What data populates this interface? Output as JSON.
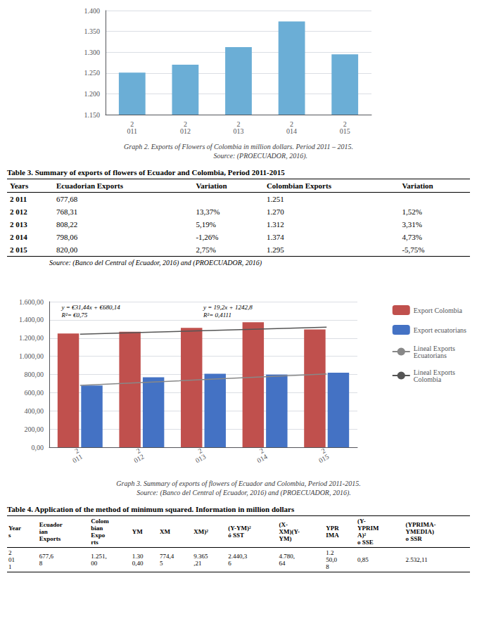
{
  "chart_data": [
    {
      "type": "bar",
      "title": "Graph 2. Exports of Flowers of Colombia in million dollars. Period 2011 – 2015.\n                         Source: (PROECUADOR, 2016).",
      "categories": [
        "2\n011",
        "2\n012",
        "2\n013",
        "2\n014",
        "2\n015"
      ],
      "values": [
        1.251,
        1.27,
        1.312,
        1.374,
        1.295
      ],
      "color": "#6baed6",
      "ylim": [
        1.15,
        1.4
      ],
      "yticks": [
        {
          "value": 1.15,
          "label": "1.150"
        },
        {
          "value": 1.2,
          "label": "1.200"
        },
        {
          "value": 1.25,
          "label": "1.250"
        },
        {
          "value": 1.3,
          "label": "1.300"
        },
        {
          "value": 1.35,
          "label": "1.350"
        },
        {
          "value": 1.4,
          "label": "1.400"
        }
      ],
      "grid": true
    },
    {
      "type": "table",
      "title": "Table 3. Summary of exports of flowers of Ecuador and Colombia, Period 2011-2015",
      "columns": [
        "Years",
        "Ecuadorian Exports",
        "Variation",
        "Colombian Exports",
        "Variation"
      ],
      "rows": [
        [
          "2 011",
          "677,68",
          null,
          "1.251",
          null
        ],
        [
          "2 012",
          "768,31",
          "13,37%",
          "1.270",
          "1,52%"
        ],
        [
          "2 013",
          "808,22",
          "5,19%",
          "1.312",
          "3,31%"
        ],
        [
          "2 014",
          "798,06",
          "-1,26%",
          "1.374",
          "4,73%"
        ],
        [
          "2 015",
          "820,00",
          "2,75%",
          "1.295",
          "-5,75%"
        ]
      ],
      "source": "Source: (Banco del Central of Ecuador, 2016) and (PROECUADOR, 2016)"
    },
    {
      "type": "bar",
      "title": "Graph 3. Summary of exports of flowers of Ecuador and Colombia, Period 2011-2015.\n      Source: (Banco del Central of Ecuador, 2016) and (PROECUADOR, 2016).",
      "categories": [
        "2\n011",
        "2\n012",
        "2\n013",
        "2\n014",
        "2\n015"
      ],
      "series": [
        {
          "name": "Export Colombia",
          "type": "bar",
          "color": "#c0504d",
          "values": [
            1251.0,
            1270.0,
            1312.0,
            1374.0,
            1295.0
          ]
        },
        {
          "name": "Export ecuatorians",
          "type": "bar",
          "color": "#4472c4",
          "values": [
            677.68,
            768.31,
            808.22,
            798.06,
            820.0
          ]
        },
        {
          "name": "Lineal Exports\nEcuatorians",
          "type": "line",
          "color": "#888888",
          "values": [
            680.14,
            711.58,
            743.02,
            774.46,
            805.9
          ]
        },
        {
          "name": "Lineal Exports\nColombia",
          "type": "line",
          "color": "#555555",
          "values": [
            1242.8,
            1262.0,
            1281.2,
            1300.4,
            1319.6
          ]
        }
      ],
      "ylim": [
        0,
        1600
      ],
      "yticks": [
        {
          "value": 0,
          "label": "0,00"
        },
        {
          "value": 200,
          "label": "200,00"
        },
        {
          "value": 400,
          "label": "400,00"
        },
        {
          "value": 600,
          "label": "600,00"
        },
        {
          "value": 800,
          "label": "800,00"
        },
        {
          "value": 1000,
          "label": "1.000,00"
        },
        {
          "value": 1200,
          "label": "1.200,00"
        },
        {
          "value": 1400,
          "label": "1.400,00"
        },
        {
          "value": 1600,
          "label": "1.600,00"
        }
      ],
      "grid": true,
      "legend": "right",
      "annotations": [
        "y = 19,2x + 1242,8\nR²= 0,4111",
        "y = €31,44x + €680,14\nR²= €0,75"
      ]
    },
    {
      "type": "table",
      "title": "Table 4. Application of the method of minimum squared. Information in million dollars",
      "columns": [
        "Year\ns",
        "Ecuador\nian\nExports",
        "Colom\nbian\nExpo\nrts",
        "YM",
        "XM",
        "XM)²",
        "(Y-YM)²\nó SST",
        "(X-\nXM)(Y-\nYM)",
        "YPR\nIMA",
        "(Y-\nYPRIM\nA)²\no SSE",
        "(YPRIMA-\nYMEDIA)\no SSR"
      ],
      "rows": [
        [
          "2\n01\n1",
          "677,6\n8",
          "1.251,\n00",
          "1.30\n0,40",
          "774,4\n5",
          "9.365\n,21",
          "2.440,3\n6",
          "4.780,\n64",
          "1.2\n50,0\n8",
          "0,85",
          "2.532,11"
        ]
      ]
    }
  ]
}
